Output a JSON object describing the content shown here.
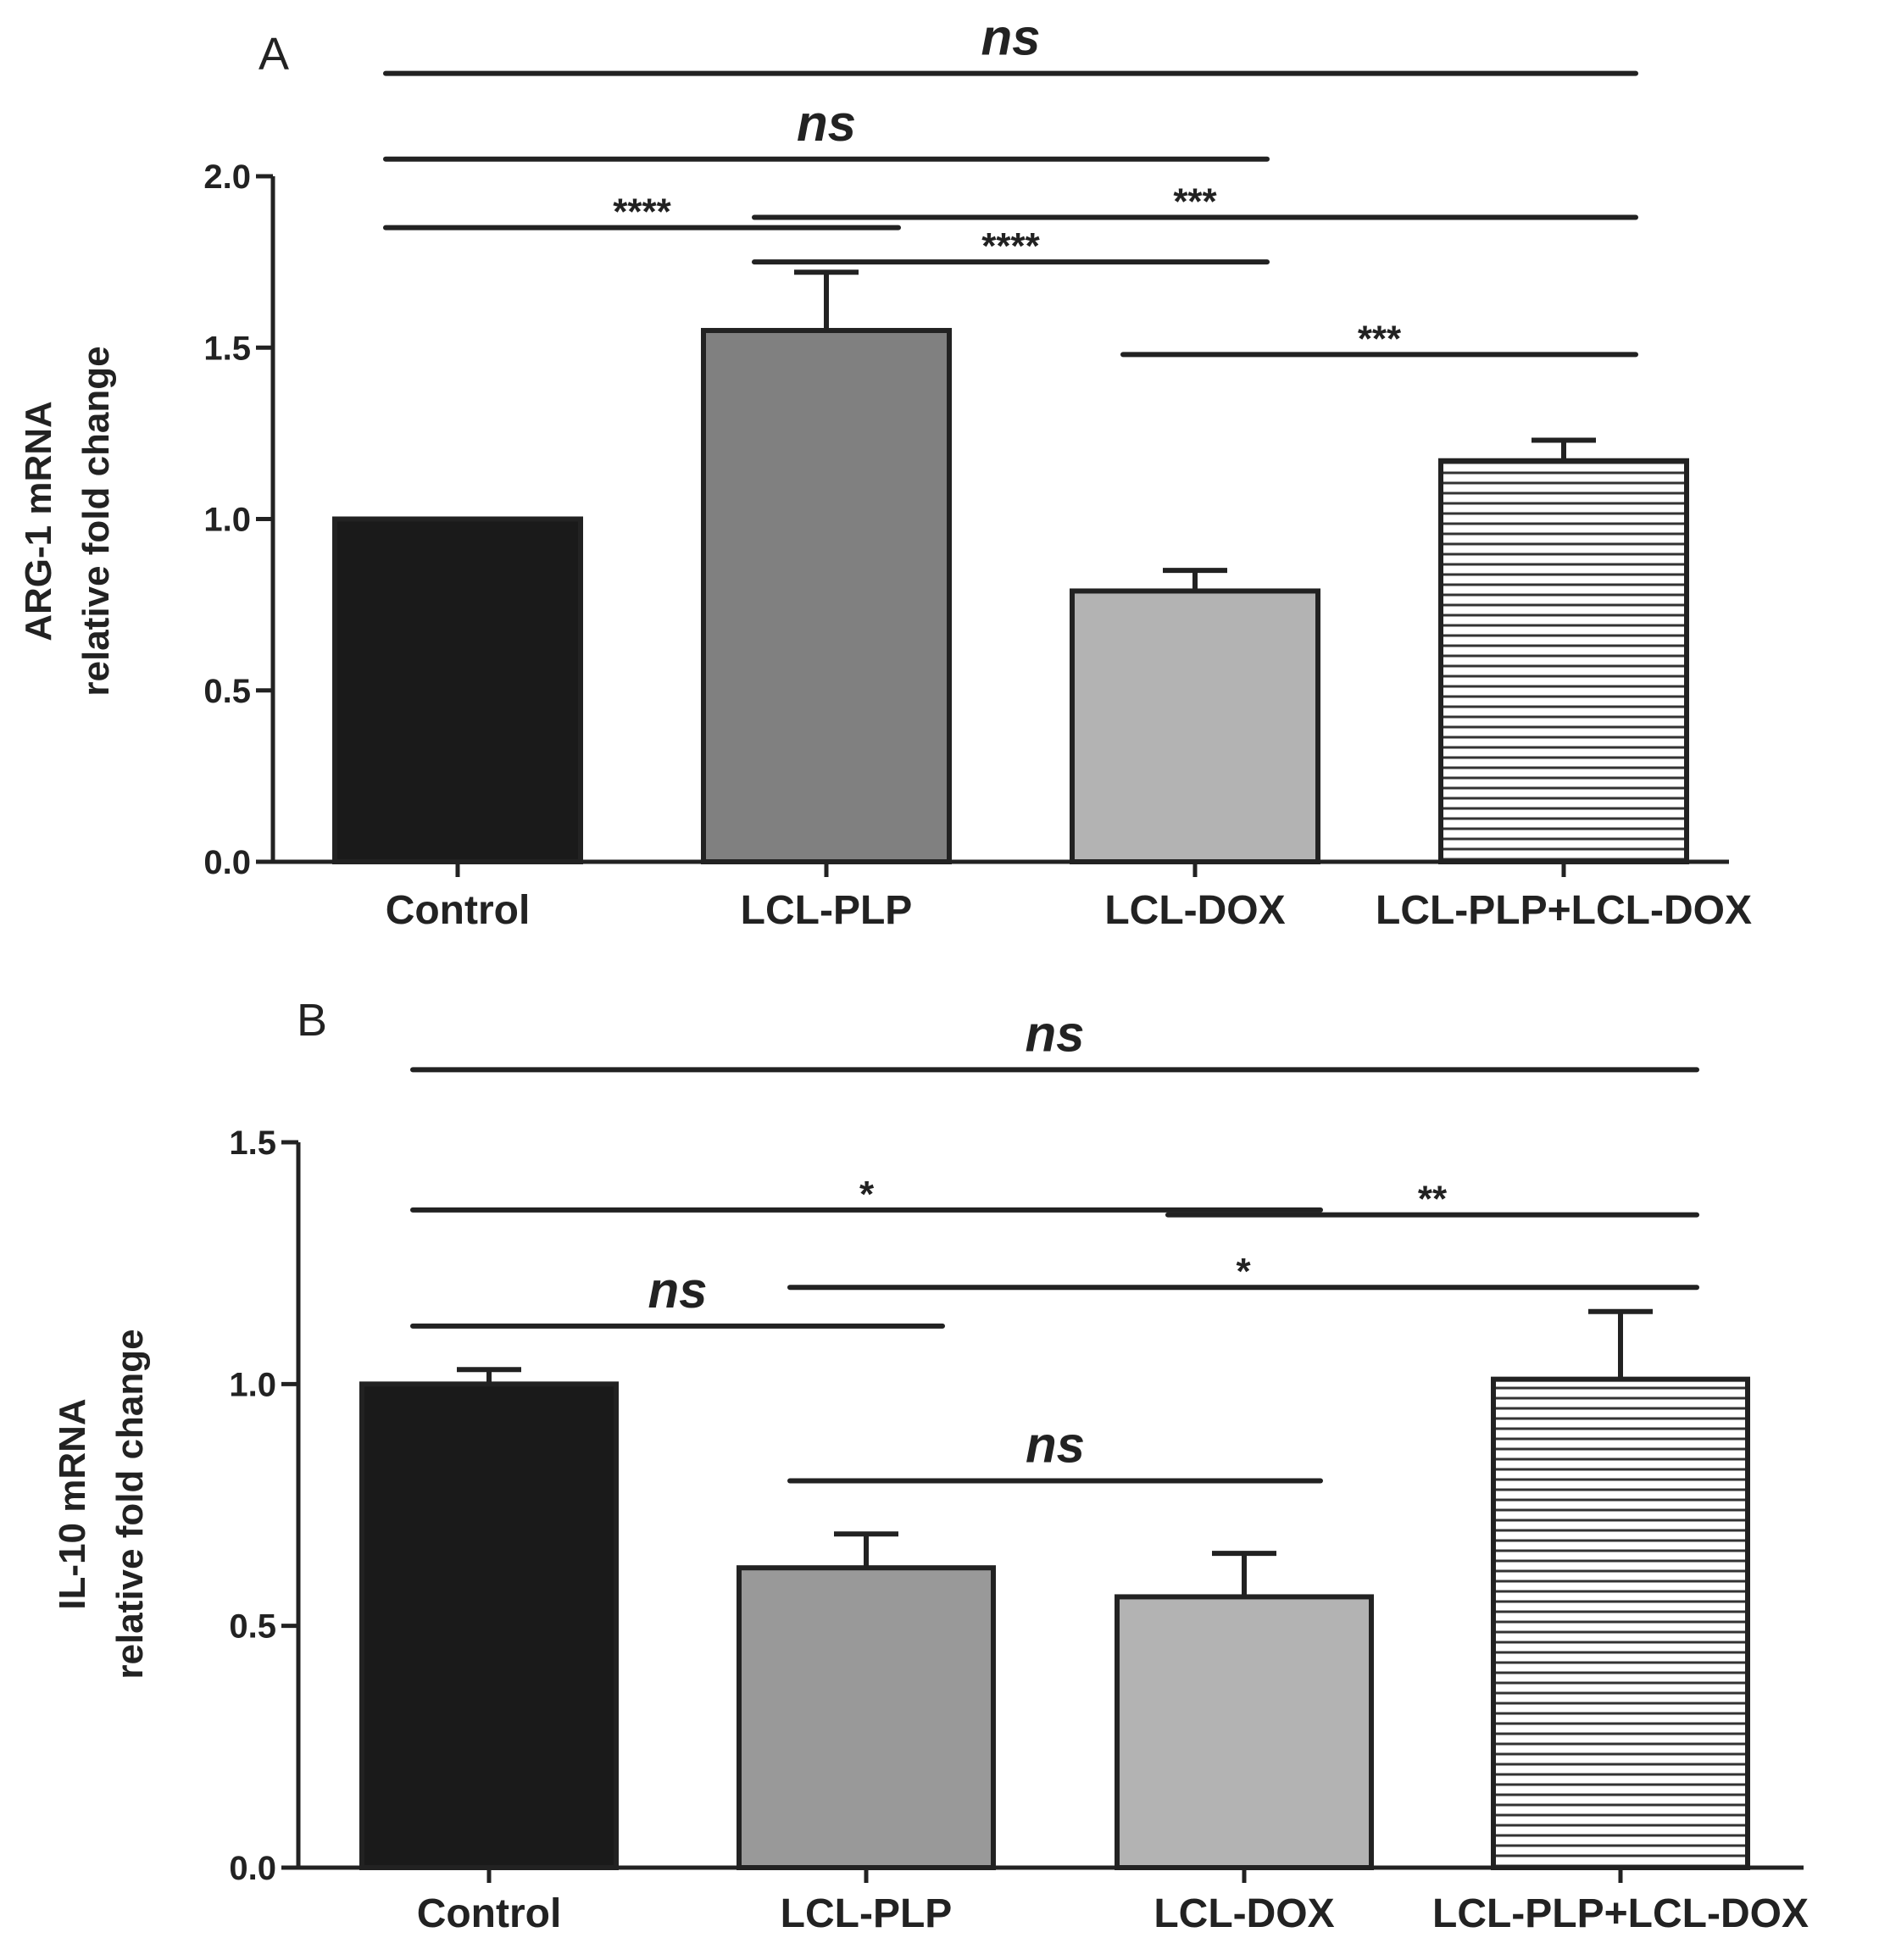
{
  "chart_data": [
    {
      "panel": "A",
      "type": "bar",
      "categories": [
        "Control",
        "LCL-PLP",
        "LCL-DOX",
        "LCL-PLP+LCL-DOX"
      ],
      "values": [
        1.0,
        1.55,
        0.79,
        1.17
      ],
      "errors": [
        0.0,
        0.17,
        0.06,
        0.06
      ],
      "fills": [
        "#1a1a1a",
        "#808080",
        "#b3b3b3",
        "hatch"
      ],
      "ylabel": [
        "ARG-1 mRNA",
        "relative fold change"
      ],
      "ylim": [
        0,
        2.0
      ],
      "yticks": [
        "0.0",
        "0.5",
        "1.0",
        "1.5",
        "2.0"
      ],
      "significance": [
        {
          "from": 0,
          "to": 1,
          "label": "****",
          "y": 1.85
        },
        {
          "from": 1,
          "to": 2,
          "label": "****",
          "y": 1.75
        },
        {
          "from": 1,
          "to": 3,
          "label": "***",
          "y": 1.88
        },
        {
          "from": 2,
          "to": 3,
          "label": "***",
          "y": 1.48
        },
        {
          "from": 0,
          "to": 2,
          "label": "ns",
          "y": 2.05
        },
        {
          "from": 0,
          "to": 3,
          "label": "ns",
          "y": 2.3
        }
      ]
    },
    {
      "panel": "B",
      "type": "bar",
      "categories": [
        "Control",
        "LCL-PLP",
        "LCL-DOX",
        "LCL-PLP+LCL-DOX"
      ],
      "values": [
        1.0,
        0.62,
        0.56,
        1.01
      ],
      "errors": [
        0.03,
        0.07,
        0.09,
        0.14
      ],
      "fills": [
        "#1a1a1a",
        "#999999",
        "#b3b3b3",
        "hatch"
      ],
      "ylabel": [
        "IL-10 mRNA",
        "relative fold change"
      ],
      "ylim": [
        0,
        1.5
      ],
      "yticks": [
        "0.0",
        "0.5",
        "1.0",
        "1.5"
      ],
      "significance": [
        {
          "from": 0,
          "to": 1,
          "label": "ns",
          "y": 1.12
        },
        {
          "from": 1,
          "to": 2,
          "label": "ns",
          "y": 0.8
        },
        {
          "from": 0,
          "to": 2,
          "label": "*",
          "y": 1.36
        },
        {
          "from": 2,
          "to": 3,
          "label": "**",
          "y": 1.35
        },
        {
          "from": 1,
          "to": 3,
          "label": "*",
          "y": 1.2
        },
        {
          "from": 0,
          "to": 3,
          "label": "ns",
          "y": 1.65
        }
      ]
    }
  ]
}
